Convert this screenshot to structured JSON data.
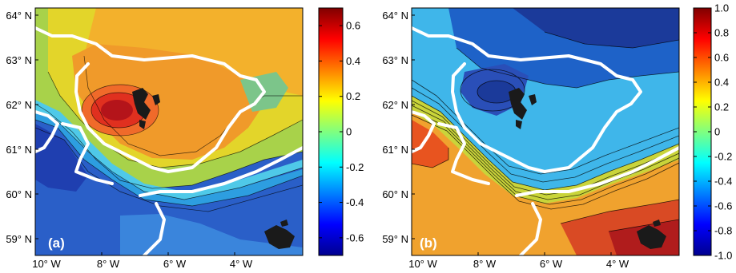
{
  "colors": {
    "jet_stops": [
      "#00008f",
      "#0000ff",
      "#00ffff",
      "#ffff00",
      "#ff0000",
      "#800000"
    ],
    "coastline": "#ffffff",
    "land": "#1a1a1a"
  },
  "panels": [
    {
      "label": "(a)",
      "colorbar": {
        "range": [
          -0.7,
          0.7
        ],
        "ticks": [
          "0.6",
          "0.4",
          "0.2",
          "0",
          "-0.2",
          "-0.4",
          "-0.6"
        ],
        "tick_values": [
          0.6,
          0.4,
          0.2,
          0,
          -0.2,
          -0.4,
          -0.6
        ]
      }
    },
    {
      "label": "(b)",
      "colorbar": {
        "range": [
          -1.0,
          1.0
        ],
        "ticks": [
          "1.0",
          "0.8",
          "0.6",
          "0.4",
          "0.2",
          "0",
          "-0.2",
          "-0.4",
          "-0.6",
          "-0.8",
          "-1.0"
        ],
        "tick_values": [
          1.0,
          0.8,
          0.6,
          0.4,
          0.2,
          0,
          -0.2,
          -0.4,
          -0.6,
          -0.8,
          -1.0
        ]
      }
    }
  ],
  "axes": {
    "lat_labels": [
      "64° N",
      "63° N",
      "62° N",
      "61° N",
      "60° N",
      "59° N"
    ],
    "lon_labels": [
      "10° W",
      "8° W",
      "6° W",
      "4° W"
    ]
  }
}
